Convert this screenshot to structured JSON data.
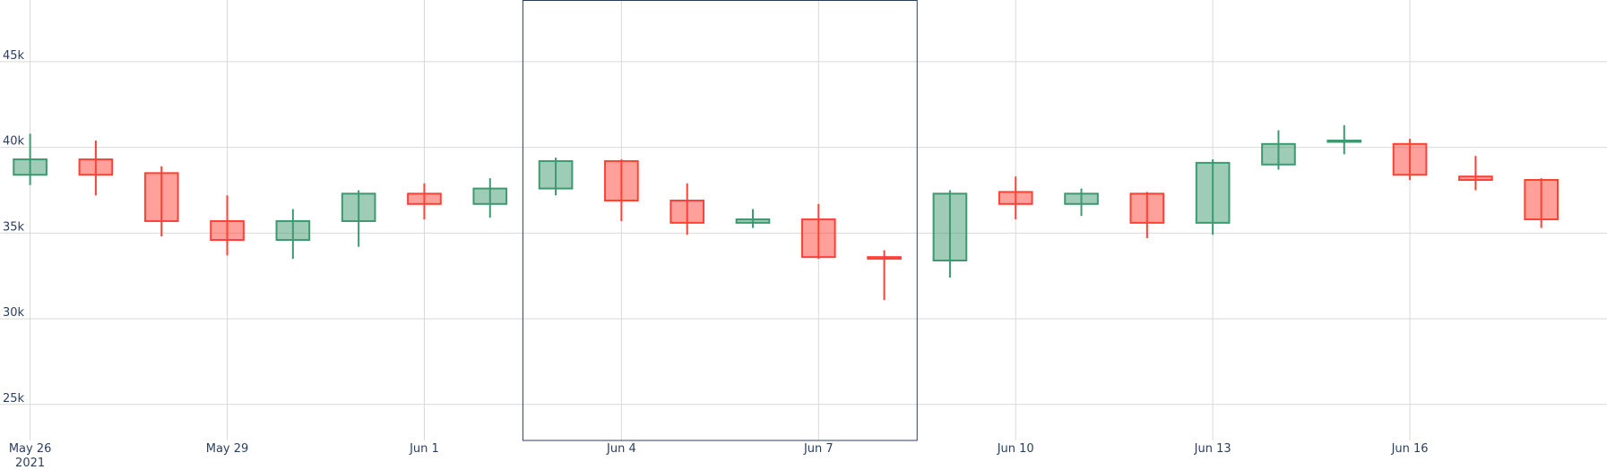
{
  "chart_data": {
    "type": "candlestick",
    "title": "",
    "xlabel": "",
    "ylabel": "",
    "ylim": [
      22900,
      48600
    ],
    "x_range": [
      "2021-05-25T13:00",
      "2021-06-19T00:00"
    ],
    "grid": true,
    "colors": {
      "increasing_line": "#3d9970",
      "increasing_fill": "rgba(61,153,112,0.5)",
      "decreasing_line": "#ff4136",
      "decreasing_fill": "rgba(255,65,54,0.5)",
      "grid": "#d9d9d9",
      "tick_text": "#2a3f5f",
      "highlight_rect": "#2a3f5f"
    },
    "y_ticks": [
      {
        "value": 25000,
        "label": "25k"
      },
      {
        "value": 30000,
        "label": "30k"
      },
      {
        "value": 35000,
        "label": "35k"
      },
      {
        "value": 40000,
        "label": "40k"
      },
      {
        "value": 45000,
        "label": "45k"
      }
    ],
    "x_ticks": [
      {
        "date": "2021-05-26",
        "label": "May 26",
        "sublabel": "2021"
      },
      {
        "date": "2021-05-29",
        "label": "May 29",
        "sublabel": ""
      },
      {
        "date": "2021-06-01",
        "label": "Jun 1",
        "sublabel": ""
      },
      {
        "date": "2021-06-04",
        "label": "Jun 4",
        "sublabel": ""
      },
      {
        "date": "2021-06-07",
        "label": "Jun 7",
        "sublabel": ""
      },
      {
        "date": "2021-06-10",
        "label": "Jun 10",
        "sublabel": ""
      },
      {
        "date": "2021-06-13",
        "label": "Jun 13",
        "sublabel": ""
      },
      {
        "date": "2021-06-16",
        "label": "Jun 16",
        "sublabel": ""
      }
    ],
    "highlight_range": {
      "start": "2021-06-02T12:00",
      "end": "2021-06-08T12:00"
    },
    "candles": [
      {
        "date": "2021-05-26",
        "open": 38400,
        "high": 40800,
        "low": 37800,
        "close": 39300
      },
      {
        "date": "2021-05-27",
        "open": 39300,
        "high": 40400,
        "low": 37200,
        "close": 38400
      },
      {
        "date": "2021-05-28",
        "open": 38500,
        "high": 38900,
        "low": 34800,
        "close": 35700
      },
      {
        "date": "2021-05-29",
        "open": 35700,
        "high": 37200,
        "low": 33700,
        "close": 34600
      },
      {
        "date": "2021-05-30",
        "open": 34600,
        "high": 36400,
        "low": 33500,
        "close": 35700
      },
      {
        "date": "2021-05-31",
        "open": 35700,
        "high": 37500,
        "low": 34200,
        "close": 37300
      },
      {
        "date": "2021-06-01",
        "open": 37300,
        "high": 37900,
        "low": 35800,
        "close": 36700
      },
      {
        "date": "2021-06-02",
        "open": 36700,
        "high": 38200,
        "low": 35900,
        "close": 37600
      },
      {
        "date": "2021-06-03",
        "open": 37600,
        "high": 39400,
        "low": 37200,
        "close": 39200
      },
      {
        "date": "2021-06-04",
        "open": 39200,
        "high": 39300,
        "low": 35700,
        "close": 36900
      },
      {
        "date": "2021-06-05",
        "open": 36900,
        "high": 37900,
        "low": 34900,
        "close": 35600
      },
      {
        "date": "2021-06-06",
        "open": 35600,
        "high": 36400,
        "low": 35300,
        "close": 35800
      },
      {
        "date": "2021-06-07",
        "open": 35800,
        "high": 36700,
        "low": 33500,
        "close": 33600
      },
      {
        "date": "2021-06-08",
        "open": 33600,
        "high": 34000,
        "low": 31100,
        "close": 33500
      },
      {
        "date": "2021-06-09",
        "open": 33400,
        "high": 37500,
        "low": 32400,
        "close": 37300
      },
      {
        "date": "2021-06-10",
        "open": 37400,
        "high": 38300,
        "low": 35800,
        "close": 36700
      },
      {
        "date": "2021-06-11",
        "open": 36700,
        "high": 37600,
        "low": 36000,
        "close": 37300
      },
      {
        "date": "2021-06-12",
        "open": 37300,
        "high": 37400,
        "low": 34700,
        "close": 35600
      },
      {
        "date": "2021-06-13",
        "open": 35600,
        "high": 39300,
        "low": 34900,
        "close": 39100
      },
      {
        "date": "2021-06-14",
        "open": 39000,
        "high": 41000,
        "low": 38700,
        "close": 40200
      },
      {
        "date": "2021-06-15",
        "open": 40400,
        "high": 41300,
        "low": 39600,
        "close": 40400
      },
      {
        "date": "2021-06-16",
        "open": 40200,
        "high": 40500,
        "low": 38100,
        "close": 38400
      },
      {
        "date": "2021-06-17",
        "open": 38300,
        "high": 39500,
        "low": 37500,
        "close": 38100
      },
      {
        "date": "2021-06-18",
        "open": 38100,
        "high": 38200,
        "low": 35300,
        "close": 35800
      }
    ]
  }
}
